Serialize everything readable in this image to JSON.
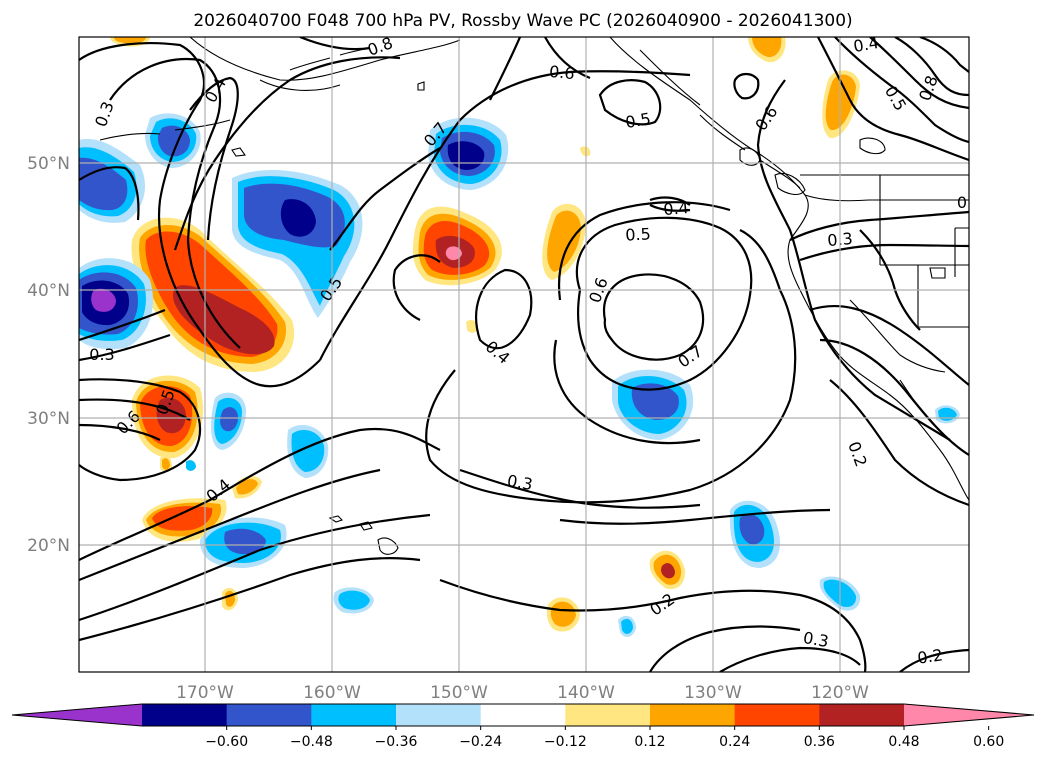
{
  "title": "2026040700 F048 700 hPa PV, Rossby Wave PC (2026040900 - 2026041300)",
  "axes": {
    "lat_labels": [
      "50°N",
      "40°N",
      "30°N",
      "20°N"
    ],
    "lon_labels": [
      "170°W",
      "160°W",
      "150°W",
      "140°W",
      "130°W",
      "120°W"
    ]
  },
  "colorbar": {
    "ticks": [
      "−0.60",
      "−0.48",
      "−0.36",
      "−0.24",
      "−0.12",
      "0.12",
      "0.24",
      "0.36",
      "0.48",
      "0.60"
    ],
    "colors": [
      "#9933cc",
      "#00008b",
      "#3355cc",
      "#00bfff",
      "#b3e0fa",
      "#ffffff",
      "#ffe680",
      "#ffa500",
      "#ff4500",
      "#b22222",
      "#ff88aa"
    ]
  },
  "contour_labels": [
    "0.3",
    "0.4",
    "0.8",
    "0.5",
    "0.7",
    "0.6",
    "0.5",
    "0.4",
    "0.5",
    "0.6",
    "0.4",
    "0.6",
    "0.7",
    "0.3",
    "0.6",
    "0.5",
    "0.4",
    "0.3",
    "0.3",
    "0.2",
    "0.2",
    "0.3",
    "0.2",
    "0.4",
    "0.5",
    "0.8",
    "0"
  ]
}
